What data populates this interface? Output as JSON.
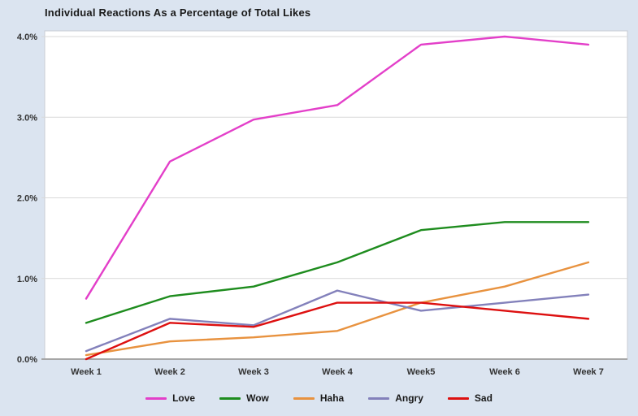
{
  "page": {
    "background": "#dbe4f0",
    "plot_background": "#ffffff",
    "gridline_color": "#d9d9d9",
    "axis_line_color": "#a6a6a6",
    "text_color": "#333333"
  },
  "chart_data": {
    "type": "line",
    "title": "Individual Reactions As a Percentage of Total Likes",
    "categories": [
      "Week 1",
      "Week 2",
      "Week 3",
      "Week 4",
      "Week5",
      "Week 6",
      "Week 7"
    ],
    "y_tick_labels": [
      "0.0%",
      "1.0%",
      "2.0%",
      "3.0%",
      "4.0%"
    ],
    "ylim": [
      0,
      4
    ],
    "xlabel": "",
    "ylabel": "",
    "grid": "horizontal",
    "legend_position": "bottom",
    "series": [
      {
        "name": "Love",
        "color": "#e33fc9",
        "values": [
          0.75,
          2.45,
          2.97,
          3.15,
          3.9,
          4.0,
          3.9
        ]
      },
      {
        "name": "Wow",
        "color": "#1e8c1e",
        "values": [
          0.45,
          0.78,
          0.9,
          1.2,
          1.6,
          1.7,
          1.7
        ]
      },
      {
        "name": "Haha",
        "color": "#e8923f",
        "values": [
          0.05,
          0.22,
          0.27,
          0.35,
          0.7,
          0.9,
          1.2
        ]
      },
      {
        "name": "Angry",
        "color": "#8381bb",
        "values": [
          0.1,
          0.5,
          0.42,
          0.85,
          0.6,
          0.7,
          0.8
        ]
      },
      {
        "name": "Sad",
        "color": "#dd1010",
        "values": [
          0.0,
          0.45,
          0.4,
          0.7,
          0.7,
          0.6,
          0.5
        ]
      }
    ]
  }
}
